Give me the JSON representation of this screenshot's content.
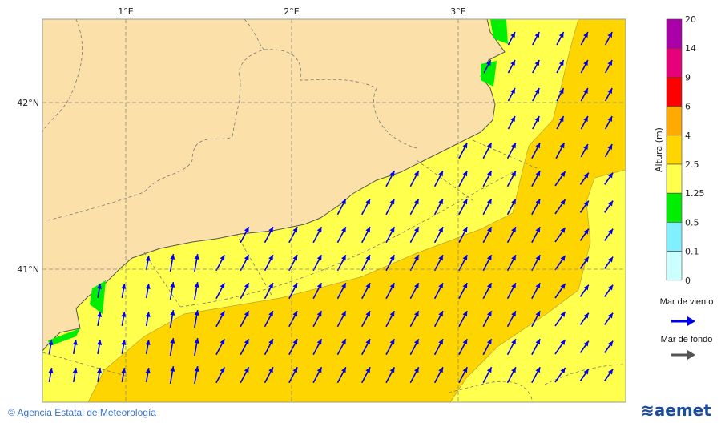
{
  "map": {
    "lon_labels": [
      "1°E",
      "2°E",
      "3°E"
    ],
    "lat_labels": [
      "42°N",
      "41°N"
    ],
    "colors": {
      "land": "#fbe0aa",
      "sea_1_25_2_5": "#ffff4d",
      "sea_2_5_4": "#ffd500",
      "wind_arrow": "#0000ee",
      "swell_arrow": "#555555"
    }
  },
  "colorbar": {
    "label": "Altura (m)",
    "ticks": [
      "20",
      "14",
      "9",
      "6",
      "4",
      "2.5",
      "1.25",
      "0.5",
      "0.1",
      "0"
    ],
    "colors": [
      "#aa00aa",
      "#e6007a",
      "#ff0000",
      "#ffaa00",
      "#ffd500",
      "#ffff4d",
      "#00ee00",
      "#80f0ff",
      "#ccffff"
    ]
  },
  "legend": {
    "wind_sea": "Mar de viento",
    "swell": "Mar de fondo"
  },
  "footer": {
    "credit": "© Agencia Estatal de Meteorología",
    "logo": "aemet"
  }
}
